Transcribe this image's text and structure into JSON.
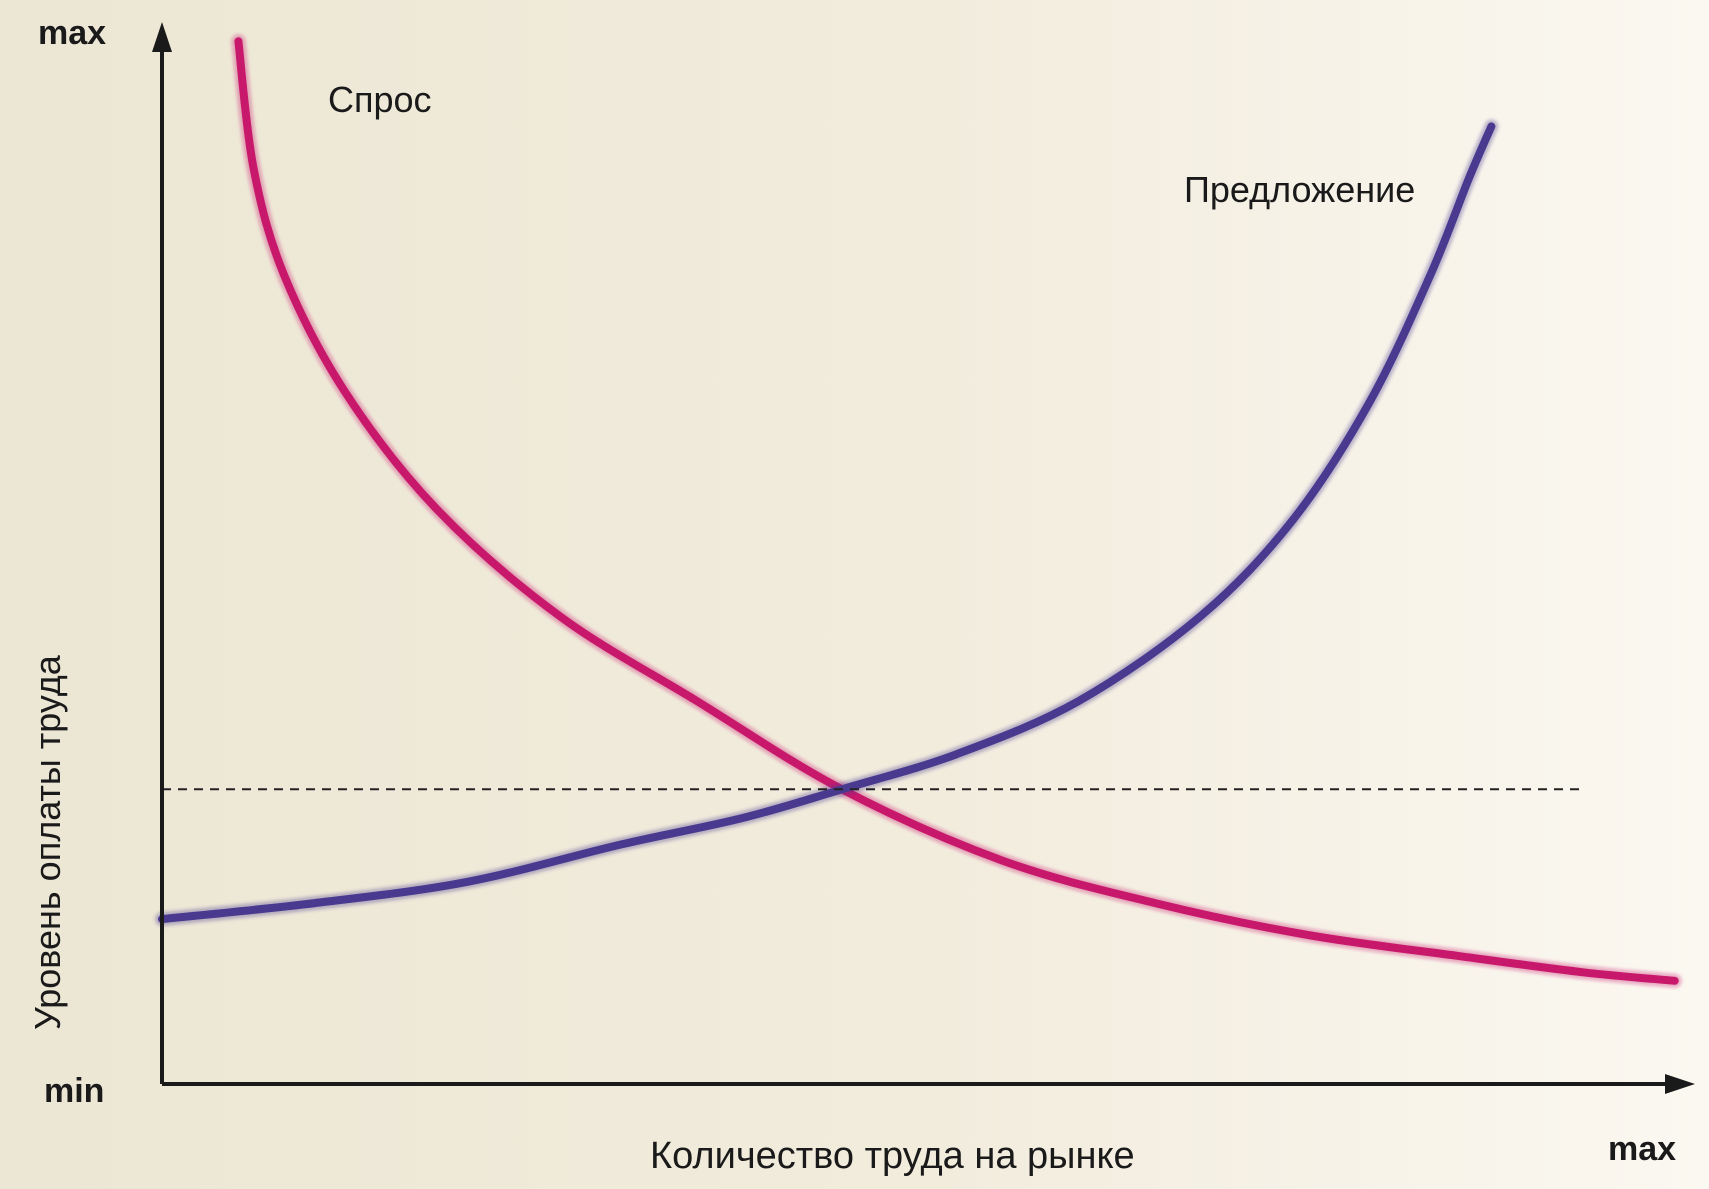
{
  "chart_data": {
    "type": "line",
    "title": "",
    "xlabel": "Количество труда на рынке",
    "ylabel": "Уровень оплаты труда",
    "x_axis": {
      "min_label": "",
      "max_label": "max"
    },
    "y_axis": {
      "min_label": "min",
      "max_label": "max"
    },
    "grid": false,
    "equilibrium_line": "dashed horizontal",
    "series": [
      {
        "name": "Спрос",
        "color": "#c8186c",
        "points": [
          [
            0.05,
            0.98
          ],
          [
            0.06,
            0.86
          ],
          [
            0.08,
            0.76
          ],
          [
            0.12,
            0.65
          ],
          [
            0.18,
            0.54
          ],
          [
            0.26,
            0.44
          ],
          [
            0.35,
            0.36
          ],
          [
            0.445,
            0.277
          ],
          [
            0.55,
            0.21
          ],
          [
            0.65,
            0.17
          ],
          [
            0.75,
            0.14
          ],
          [
            0.85,
            0.12
          ],
          [
            0.93,
            0.105
          ],
          [
            0.99,
            0.097
          ]
        ]
      },
      {
        "name": "Предложение",
        "color": "#4a3a8f",
        "points": [
          [
            0.0,
            0.155
          ],
          [
            0.1,
            0.17
          ],
          [
            0.2,
            0.19
          ],
          [
            0.3,
            0.225
          ],
          [
            0.38,
            0.25
          ],
          [
            0.445,
            0.277
          ],
          [
            0.52,
            0.31
          ],
          [
            0.6,
            0.36
          ],
          [
            0.68,
            0.44
          ],
          [
            0.74,
            0.53
          ],
          [
            0.79,
            0.64
          ],
          [
            0.83,
            0.76
          ],
          [
            0.855,
            0.85
          ],
          [
            0.87,
            0.9
          ]
        ]
      }
    ],
    "equilibrium": {
      "x": 0.445,
      "y": 0.277
    }
  }
}
